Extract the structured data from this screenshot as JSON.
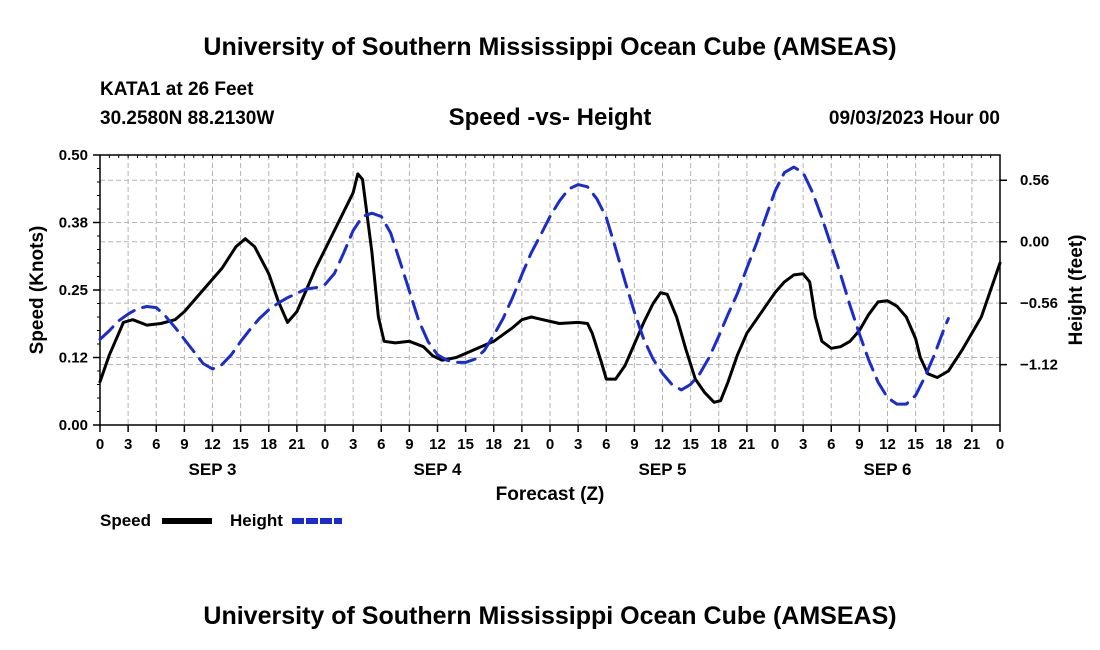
{
  "chart_data": {
    "type": "line",
    "title": "University of Southern Mississippi Ocean Cube (AMSEAS)",
    "footer_title": "University of Southern Mississippi Ocean Cube (AMSEAS)",
    "subtitle": "Speed -vs- Height",
    "station": "KATA1 at 26 Feet",
    "coords": "30.2580N  88.2130W",
    "datetime": "09/03/2023 Hour 00",
    "xlabel": "Forecast (Z)",
    "ylabel_left": "Speed (Knots)",
    "ylabel_right": "Height (feet)",
    "xlim": [
      0,
      96
    ],
    "ylim_left": [
      0,
      0.5
    ],
    "ylim_right": [
      -1.67,
      0.79
    ],
    "grid": true,
    "x_tick_values": [
      0,
      3,
      6,
      9,
      12,
      15,
      18,
      21,
      24,
      27,
      30,
      33,
      36,
      39,
      42,
      45,
      48,
      51,
      54,
      57,
      60,
      63,
      66,
      69,
      72,
      75,
      78,
      81,
      84,
      87,
      90,
      93,
      96
    ],
    "x_tick_labels": [
      "0",
      "3",
      "6",
      "9",
      "12",
      "15",
      "18",
      "21",
      "0",
      "3",
      "6",
      "9",
      "12",
      "15",
      "18",
      "21",
      "0",
      "3",
      "6",
      "9",
      "12",
      "15",
      "18",
      "21",
      "0",
      "3",
      "6",
      "9",
      "12",
      "15",
      "18",
      "21",
      "0"
    ],
    "day_labels": [
      {
        "x": 12,
        "label": "SEP 3"
      },
      {
        "x": 36,
        "label": "SEP 4"
      },
      {
        "x": 60,
        "label": "SEP 5"
      },
      {
        "x": 84,
        "label": "SEP 6"
      }
    ],
    "left_ticks": [
      {
        "value": 0.0,
        "label": "0.00"
      },
      {
        "value": 0.125,
        "label": "0.12"
      },
      {
        "value": 0.25,
        "label": "0.25"
      },
      {
        "value": 0.375,
        "label": "0.38"
      },
      {
        "value": 0.5,
        "label": "0.50"
      }
    ],
    "right_ticks": [
      {
        "value": 0.56,
        "label": "0.56"
      },
      {
        "value": 0.0,
        "label": "0.00"
      },
      {
        "value": -0.56,
        "label": "−0.56"
      },
      {
        "value": -1.12,
        "label": "−1.12"
      }
    ],
    "series": [
      {
        "name": "Speed",
        "axis": "left",
        "color": "#000000",
        "dash": "solid",
        "points": [
          [
            0,
            0.08
          ],
          [
            1,
            0.13
          ],
          [
            2,
            0.17
          ],
          [
            2.5,
            0.19
          ],
          [
            3.5,
            0.195
          ],
          [
            5,
            0.185
          ],
          [
            6.5,
            0.188
          ],
          [
            8,
            0.195
          ],
          [
            9,
            0.21
          ],
          [
            11,
            0.25
          ],
          [
            13,
            0.29
          ],
          [
            14.5,
            0.33
          ],
          [
            15.5,
            0.345
          ],
          [
            16.5,
            0.33
          ],
          [
            18,
            0.28
          ],
          [
            19,
            0.23
          ],
          [
            20,
            0.19
          ],
          [
            21,
            0.21
          ],
          [
            22,
            0.25
          ],
          [
            23,
            0.29
          ],
          [
            25,
            0.36
          ],
          [
            27,
            0.43
          ],
          [
            27.5,
            0.465
          ],
          [
            28,
            0.455
          ],
          [
            29,
            0.32
          ],
          [
            29.7,
            0.2
          ],
          [
            30.3,
            0.155
          ],
          [
            31.5,
            0.152
          ],
          [
            33,
            0.155
          ],
          [
            34.5,
            0.145
          ],
          [
            35.5,
            0.128
          ],
          [
            36.5,
            0.12
          ],
          [
            38,
            0.125
          ],
          [
            40,
            0.14
          ],
          [
            42,
            0.155
          ],
          [
            44,
            0.18
          ],
          [
            45,
            0.195
          ],
          [
            46,
            0.2
          ],
          [
            47,
            0.196
          ],
          [
            49,
            0.188
          ],
          [
            51,
            0.19
          ],
          [
            52,
            0.188
          ],
          [
            52.5,
            0.17
          ],
          [
            53.5,
            0.115
          ],
          [
            54,
            0.085
          ],
          [
            55,
            0.085
          ],
          [
            56,
            0.11
          ],
          [
            57,
            0.15
          ],
          [
            58,
            0.19
          ],
          [
            59,
            0.225
          ],
          [
            59.8,
            0.245
          ],
          [
            60.5,
            0.242
          ],
          [
            61.5,
            0.2
          ],
          [
            62.5,
            0.14
          ],
          [
            63.5,
            0.085
          ],
          [
            64.5,
            0.06
          ],
          [
            65.5,
            0.042
          ],
          [
            66.2,
            0.045
          ],
          [
            67,
            0.08
          ],
          [
            68,
            0.13
          ],
          [
            69,
            0.17
          ],
          [
            70,
            0.195
          ],
          [
            71,
            0.22
          ],
          [
            72,
            0.245
          ],
          [
            73,
            0.265
          ],
          [
            74,
            0.278
          ],
          [
            75,
            0.28
          ],
          [
            75.7,
            0.265
          ],
          [
            76.3,
            0.2
          ],
          [
            77,
            0.155
          ],
          [
            78,
            0.142
          ],
          [
            79,
            0.145
          ],
          [
            80,
            0.155
          ],
          [
            81,
            0.175
          ],
          [
            82,
            0.205
          ],
          [
            83,
            0.228
          ],
          [
            84,
            0.23
          ],
          [
            85,
            0.22
          ],
          [
            86,
            0.2
          ],
          [
            87,
            0.16
          ],
          [
            87.5,
            0.125
          ],
          [
            88.3,
            0.095
          ],
          [
            89.3,
            0.088
          ],
          [
            90.5,
            0.1
          ],
          [
            92,
            0.14
          ],
          [
            94,
            0.2
          ],
          [
            96,
            0.3
          ]
        ]
      },
      {
        "name": "Height",
        "axis": "right",
        "color": "#1a2dcc",
        "dash": "dashed",
        "points": [
          [
            0,
            -0.89
          ],
          [
            1,
            -0.81
          ],
          [
            2,
            -0.72
          ],
          [
            3,
            -0.66
          ],
          [
            4,
            -0.61
          ],
          [
            5,
            -0.59
          ],
          [
            6,
            -0.6
          ],
          [
            7,
            -0.68
          ],
          [
            8,
            -0.78
          ],
          [
            10,
            -1.0
          ],
          [
            11,
            -1.11
          ],
          [
            12,
            -1.16
          ],
          [
            13,
            -1.12
          ],
          [
            14,
            -1.03
          ],
          [
            15,
            -0.91
          ],
          [
            16,
            -0.8
          ],
          [
            17,
            -0.7
          ],
          [
            18,
            -0.62
          ],
          [
            19,
            -0.56
          ],
          [
            20,
            -0.51
          ],
          [
            21,
            -0.47
          ],
          [
            22,
            -0.43
          ],
          [
            23,
            -0.42
          ],
          [
            24,
            -0.39
          ],
          [
            25,
            -0.29
          ],
          [
            26,
            -0.1
          ],
          [
            27,
            0.1
          ],
          [
            28,
            0.23
          ],
          [
            29,
            0.26
          ],
          [
            30,
            0.23
          ],
          [
            31,
            0.08
          ],
          [
            32,
            -0.18
          ],
          [
            33,
            -0.45
          ],
          [
            34,
            -0.72
          ],
          [
            35,
            -0.91
          ],
          [
            36,
            -1.03
          ],
          [
            37,
            -1.08
          ],
          [
            38,
            -1.1
          ],
          [
            39,
            -1.1
          ],
          [
            40,
            -1.07
          ],
          [
            41,
            -0.99
          ],
          [
            42,
            -0.85
          ],
          [
            43,
            -0.7
          ],
          [
            44,
            -0.51
          ],
          [
            45,
            -0.3
          ],
          [
            46,
            -0.1
          ],
          [
            47,
            0.06
          ],
          [
            48,
            0.23
          ],
          [
            49,
            0.37
          ],
          [
            50,
            0.48
          ],
          [
            51,
            0.52
          ],
          [
            52,
            0.5
          ],
          [
            53,
            0.39
          ],
          [
            54,
            0.22
          ],
          [
            55,
            -0.06
          ],
          [
            56,
            -0.36
          ],
          [
            57,
            -0.64
          ],
          [
            58,
            -0.89
          ],
          [
            59,
            -1.07
          ],
          [
            60,
            -1.2
          ],
          [
            61,
            -1.3
          ],
          [
            62,
            -1.35
          ],
          [
            63,
            -1.3
          ],
          [
            64,
            -1.2
          ],
          [
            65,
            -1.05
          ],
          [
            66,
            -0.86
          ],
          [
            67,
            -0.66
          ],
          [
            68,
            -0.47
          ],
          [
            69,
            -0.24
          ],
          [
            70,
            -0.02
          ],
          [
            71,
            0.22
          ],
          [
            72,
            0.46
          ],
          [
            73,
            0.63
          ],
          [
            74,
            0.68
          ],
          [
            75,
            0.63
          ],
          [
            76,
            0.45
          ],
          [
            77,
            0.22
          ],
          [
            78,
            -0.04
          ],
          [
            79,
            -0.3
          ],
          [
            80,
            -0.58
          ],
          [
            81,
            -0.84
          ],
          [
            82,
            -1.08
          ],
          [
            83,
            -1.28
          ],
          [
            84,
            -1.42
          ],
          [
            85,
            -1.48
          ],
          [
            86,
            -1.48
          ],
          [
            87,
            -1.4
          ],
          [
            88,
            -1.23
          ],
          [
            89,
            -1.03
          ],
          [
            90,
            -0.8
          ],
          [
            90.5,
            -0.7
          ]
        ]
      }
    ],
    "legend": [
      {
        "label": "Speed",
        "color": "#000000",
        "dash": "solid"
      },
      {
        "label": "Height",
        "color": "#1a2dcc",
        "dash": "dashed"
      }
    ]
  }
}
